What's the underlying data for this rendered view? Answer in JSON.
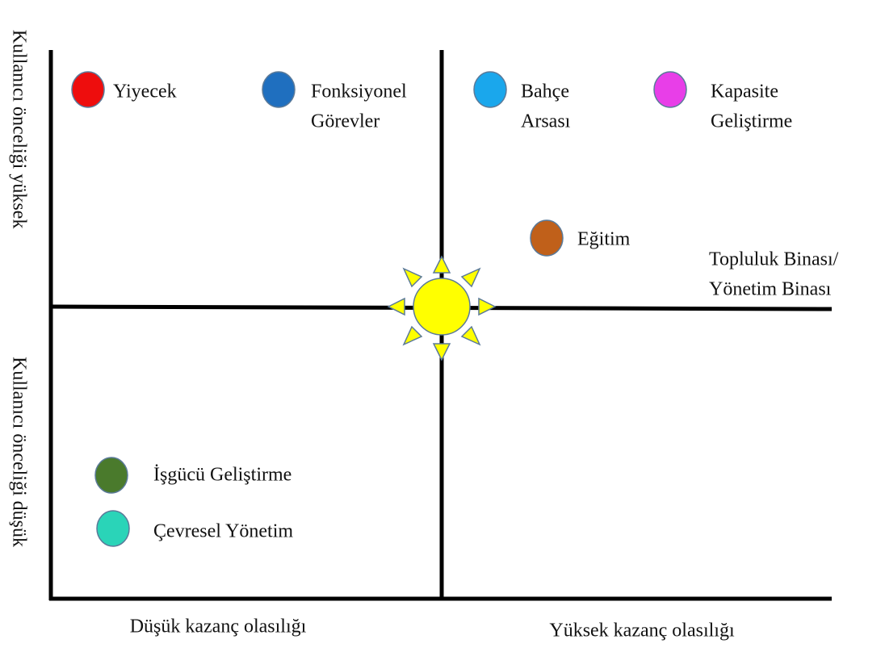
{
  "axes": {
    "y_high": "Kullanıcı önceliği yüksek",
    "y_low": "Kullanıcı önceliği düşük",
    "x_low": "Düşük kazanç olasılığı",
    "x_high": "Yüksek kazanç olasılığı"
  },
  "items": [
    {
      "lines": [
        "Yiyecek"
      ],
      "color": "#ee0d0d"
    },
    {
      "lines": [
        "Fonksiyonel",
        "Görevler"
      ],
      "color": "#1f6fbf"
    },
    {
      "lines": [
        "Bahçe",
        "Arsası"
      ],
      "color": "#1aa7ec"
    },
    {
      "lines": [
        "Kapasite",
        "Geliştirme"
      ],
      "color": "#e83ee8"
    },
    {
      "lines": [
        "Eğitim"
      ],
      "color": "#c0601a"
    },
    {
      "lines": [
        "Topluluk Binası/",
        "Yönetim Binası"
      ]
    },
    {
      "lines": [
        "İşgücü Geliştirme"
      ],
      "color": "#4a7a2c"
    },
    {
      "lines": [
        "Çevresel Yönetim"
      ],
      "color": "#2ad4b8"
    }
  ]
}
